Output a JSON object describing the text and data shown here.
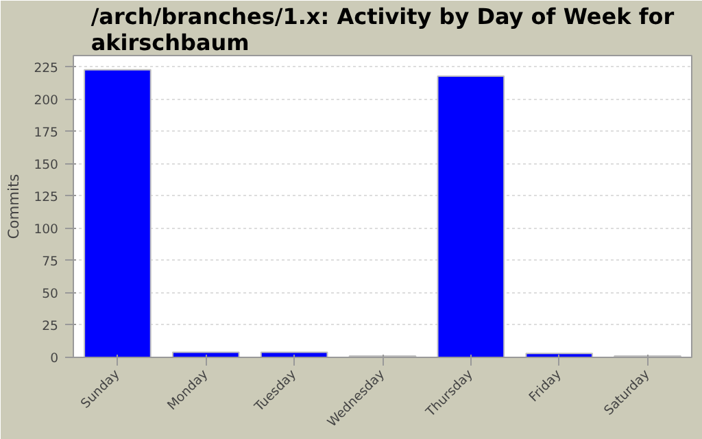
{
  "chart_data": {
    "type": "bar",
    "title": "/arch/branches/1.x: Activity by Day of Week for akirschbaum",
    "ylabel": "Commits",
    "categories": [
      "Sunday",
      "Monday",
      "Tuesday",
      "Wednesday",
      "Thursday",
      "Friday",
      "Saturday"
    ],
    "values": [
      223,
      4,
      4,
      1,
      218,
      3,
      1
    ],
    "color": "#0000ff",
    "ylim": [
      0,
      234
    ],
    "yticks": [
      0,
      25,
      50,
      75,
      100,
      125,
      150,
      175,
      200,
      225
    ],
    "grid": "y"
  }
}
